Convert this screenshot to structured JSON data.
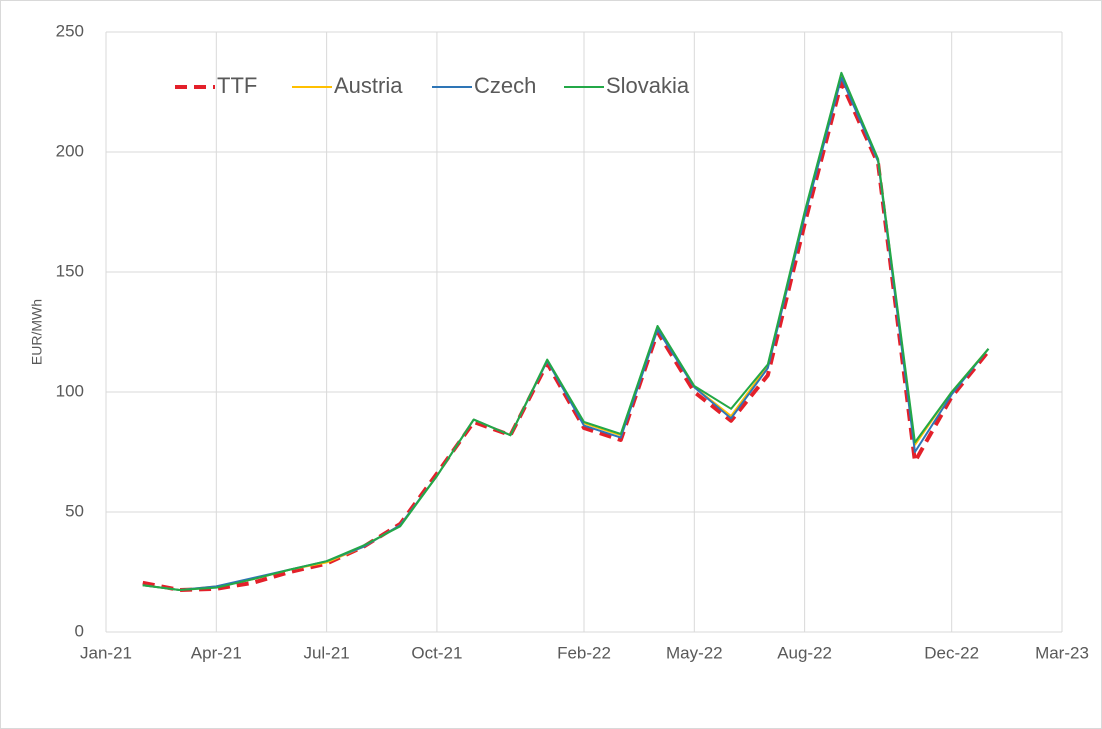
{
  "chart_data": {
    "type": "line",
    "y_label": "EUR/MWh",
    "x": [
      "2021-02",
      "2021-03",
      "2021-04",
      "2021-05",
      "2021-06",
      "2021-07",
      "2021-08",
      "2021-09",
      "2021-10",
      "2021-11",
      "2021-12",
      "2022-01",
      "2022-02",
      "2022-03",
      "2022-04",
      "2022-05",
      "2022-06",
      "2022-07",
      "2022-08",
      "2022-09",
      "2022-10",
      "2022-11",
      "2022-12",
      "2023-01"
    ],
    "series": [
      {
        "name": "TTF",
        "color": "#e3202a",
        "dashed": true,
        "values": [
          20.5,
          17.5,
          18,
          20.5,
          25,
          28.5,
          35.5,
          45,
          66,
          87.5,
          82,
          112,
          85,
          80,
          125,
          100,
          88,
          107,
          170,
          229,
          195,
          71,
          98,
          117
        ]
      },
      {
        "name": "Austria",
        "color": "#ffc000",
        "dashed": false,
        "values": [
          19.5,
          17.5,
          19,
          22,
          26,
          29,
          35.5,
          44.5,
          65,
          88.5,
          82,
          113,
          87,
          82,
          127,
          102,
          90,
          111,
          174,
          232,
          196,
          78,
          100,
          118
        ]
      },
      {
        "name": "Czech",
        "color": "#2e75b6",
        "dashed": false,
        "values": [
          19.5,
          17.5,
          19,
          22.5,
          26,
          29.5,
          35.5,
          44.5,
          65,
          88.5,
          82,
          113,
          86,
          81,
          126,
          102,
          89,
          110,
          173,
          231,
          196,
          75,
          99,
          118
        ]
      },
      {
        "name": "Slovakia",
        "color": "#23a847",
        "dashed": false,
        "values": [
          19.5,
          17.5,
          18.5,
          22,
          26,
          29.5,
          36,
          44,
          65,
          88.5,
          82,
          113.5,
          87.5,
          82.5,
          127.5,
          102.5,
          93,
          111.5,
          175,
          233,
          197,
          79,
          100,
          118
        ]
      }
    ],
    "xlim": [
      "2021-01",
      "2023-03"
    ],
    "xticks": [
      {
        "value": "2021-01",
        "label": "Jan-21"
      },
      {
        "value": "2021-04",
        "label": "Apr-21"
      },
      {
        "value": "2021-07",
        "label": "Jul-21"
      },
      {
        "value": "2021-10",
        "label": "Oct-21"
      },
      {
        "value": "2022-02",
        "label": "Feb-22"
      },
      {
        "value": "2022-05",
        "label": "May-22"
      },
      {
        "value": "2022-08",
        "label": "Aug-22"
      },
      {
        "value": "2022-12",
        "label": "Dec-22"
      },
      {
        "value": "2023-03",
        "label": "Mar-23"
      }
    ],
    "ylim": [
      0,
      250
    ],
    "yticks": [
      0,
      50,
      100,
      150,
      200,
      250
    ],
    "grid": true,
    "legend": "top-left"
  }
}
